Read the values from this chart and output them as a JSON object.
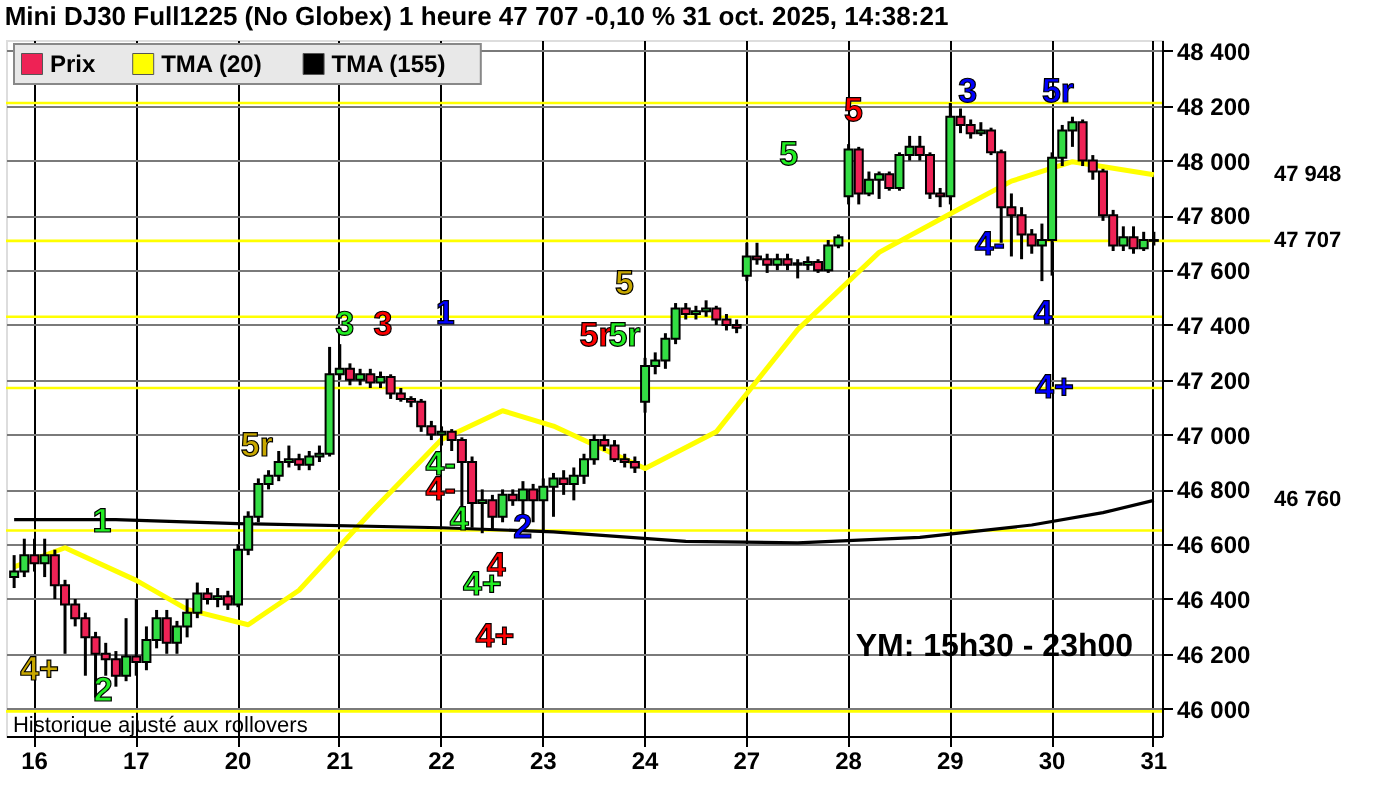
{
  "chart_data": {
    "type": "candlestick",
    "title": "Mini DJ30 Full1225 (No Globex) 1 heure 47 707 -0,10 % 31 oct. 2025, 14:38:21",
    "categories": [
      null,
      null,
      "16",
      null,
      null,
      null,
      null,
      null,
      null,
      null,
      null,
      null,
      "17",
      null,
      null,
      null,
      null,
      null,
      null,
      null,
      null,
      null,
      "20",
      null,
      null,
      null,
      null,
      null,
      null,
      null,
      null,
      null,
      "21",
      null,
      null,
      null,
      null,
      null,
      null,
      null,
      null,
      null,
      "22",
      null,
      null,
      null,
      null,
      null,
      null,
      null,
      null,
      null,
      "23",
      null,
      null,
      null,
      null,
      null,
      null,
      null,
      null,
      null,
      "24",
      null,
      null,
      null,
      null,
      null,
      null,
      null,
      null,
      null,
      "27",
      null,
      null,
      null,
      null,
      null,
      null,
      null,
      null,
      null,
      "28",
      null,
      null,
      null,
      null,
      null,
      null,
      null,
      null,
      null,
      "29",
      null,
      null,
      null,
      null,
      null,
      null,
      null,
      null,
      null,
      "30",
      null,
      null,
      null,
      null,
      null,
      null,
      null,
      null,
      null,
      "31"
    ],
    "ylim": [
      45900,
      48440
    ],
    "yticks": [
      {
        "value": 46000,
        "label": "46 000"
      },
      {
        "value": 46200,
        "label": "46 200"
      },
      {
        "value": 46400,
        "label": "46 400"
      },
      {
        "value": 46600,
        "label": "46 600"
      },
      {
        "value": 46800,
        "label": "46 800"
      },
      {
        "value": 47000,
        "label": "47 000"
      },
      {
        "value": 47200,
        "label": "47 200"
      },
      {
        "value": 47400,
        "label": "47 400"
      },
      {
        "value": 47600,
        "label": "47 600"
      },
      {
        "value": 47800,
        "label": "47 800"
      },
      {
        "value": 48000,
        "label": "48 000"
      },
      {
        "value": 48200,
        "label": "48 200"
      },
      {
        "value": 48400,
        "label": "48 400"
      }
    ],
    "grid": true,
    "legend": "top left",
    "series": [
      {
        "name": "Prix",
        "colors": [
          "#33dd44",
          "#33dd44",
          "#ee2255",
          "#33dd44",
          "#ee2255",
          "#ee2255",
          "#ee2255",
          "#ee2255",
          "#ee2255",
          "#ee2255",
          "#ee2255",
          "#33dd44",
          "#ee2255",
          "#33dd44",
          "#33dd44",
          "#ee2255",
          "#33dd44",
          "#33dd44",
          "#33dd44",
          "#ee2255",
          "#33dd44",
          "#ee2255",
          "#33dd44",
          "#33dd44",
          "#33dd44",
          "#33dd44",
          "#33dd44",
          "#33dd44",
          "#ee2255",
          "#33dd44",
          "#33dd44",
          "#33dd44",
          "#33dd44",
          "#ee2255",
          "#33dd44",
          "#ee2255",
          "#33dd44",
          "#ee2255",
          "#ee2255",
          "#ee2255",
          "#ee2255",
          "#ee2255",
          "#33dd44",
          "#ee2255",
          "#ee2255",
          "#ee2255",
          "#33dd44",
          "#ee2255",
          "#33dd44",
          "#ee2255",
          "#33dd44",
          "#ee2255",
          "#33dd44",
          "#33dd44",
          "#ee2255",
          "#33dd44",
          "#33dd44",
          "#33dd44",
          "#ee2255",
          "#ee2255",
          "#ee2255",
          "#ee2255",
          "#33dd44",
          "#33dd44",
          "#33dd44",
          "#33dd44",
          "#ee2255",
          "#33dd44",
          "#33dd44",
          "#ee2255",
          "#ee2255",
          "#ee2255",
          "#33dd44",
          "#ee2255",
          "#ee2255",
          "#33dd44",
          "#ee2255",
          "#33dd44",
          "#33dd44",
          "#ee2255",
          "#33dd44",
          "#33dd44",
          "#33dd44",
          "#ee2255",
          "#33dd44",
          "#33dd44",
          "#ee2255",
          "#33dd44",
          "#33dd44",
          "#ee2255",
          "#ee2255",
          "#ee2255",
          "#33dd44",
          "#ee2255",
          "#ee2255",
          "#33dd44",
          "#ee2255",
          "#ee2255",
          "#ee2255",
          "#ee2255",
          "#ee2255",
          "#33dd44",
          "#33dd44",
          "#33dd44",
          "#33dd44",
          "#ee2255",
          "#ee2255",
          "#ee2255",
          "#ee2255",
          "#33dd44",
          "#ee2255",
          "#33dd44",
          "#ee2255"
        ],
        "ohlc": [
          [
            46480,
            46560,
            46440,
            46500
          ],
          [
            46500,
            46620,
            46480,
            46560
          ],
          [
            46560,
            46620,
            46500,
            46530
          ],
          [
            46530,
            46620,
            46480,
            46560
          ],
          [
            46560,
            46580,
            46400,
            46450
          ],
          [
            46450,
            46470,
            46200,
            46380
          ],
          [
            46380,
            46400,
            46300,
            46330
          ],
          [
            46330,
            46350,
            46120,
            46260
          ],
          [
            46260,
            46280,
            46040,
            46200
          ],
          [
            46200,
            46240,
            46120,
            46180
          ],
          [
            46180,
            46210,
            46080,
            46120
          ],
          [
            46120,
            46330,
            46100,
            46190
          ],
          [
            46190,
            46400,
            46120,
            46170
          ],
          [
            46170,
            46300,
            46140,
            46250
          ],
          [
            46250,
            46360,
            46220,
            46330
          ],
          [
            46330,
            46360,
            46200,
            46240
          ],
          [
            46240,
            46320,
            46200,
            46300
          ],
          [
            46300,
            46400,
            46260,
            46350
          ],
          [
            46350,
            46460,
            46330,
            46420
          ],
          [
            46420,
            46440,
            46380,
            46400
          ],
          [
            46400,
            46440,
            46370,
            46410
          ],
          [
            46410,
            46430,
            46360,
            46380
          ],
          [
            46380,
            46600,
            46370,
            46580
          ],
          [
            46580,
            46720,
            46560,
            46700
          ],
          [
            46700,
            46840,
            46680,
            46820
          ],
          [
            46820,
            46870,
            46800,
            46850
          ],
          [
            46850,
            46940,
            46830,
            46900
          ],
          [
            46900,
            46960,
            46880,
            46910
          ],
          [
            46910,
            46930,
            46870,
            46890
          ],
          [
            46890,
            46940,
            46870,
            46920
          ],
          [
            46920,
            46960,
            46900,
            46930
          ],
          [
            46930,
            47320,
            46920,
            47220
          ],
          [
            47220,
            47330,
            47200,
            47240
          ],
          [
            47240,
            47260,
            47180,
            47200
          ],
          [
            47200,
            47240,
            47180,
            47220
          ],
          [
            47220,
            47240,
            47170,
            47190
          ],
          [
            47190,
            47230,
            47170,
            47210
          ],
          [
            47210,
            47220,
            47130,
            47150
          ],
          [
            47150,
            47170,
            47120,
            47130
          ],
          [
            47130,
            47140,
            47100,
            47120
          ],
          [
            47120,
            47130,
            47010,
            47030
          ],
          [
            47030,
            47050,
            46980,
            47000
          ],
          [
            47000,
            47030,
            46960,
            47010
          ],
          [
            47010,
            47020,
            46940,
            46980
          ],
          [
            46980,
            46990,
            46680,
            46900
          ],
          [
            46900,
            46920,
            46660,
            46750
          ],
          [
            46750,
            46800,
            46640,
            46760
          ],
          [
            46760,
            46780,
            46650,
            46700
          ],
          [
            46700,
            46800,
            46680,
            46780
          ],
          [
            46780,
            46800,
            46740,
            46760
          ],
          [
            46760,
            46830,
            46700,
            46800
          ],
          [
            46800,
            46820,
            46680,
            46760
          ],
          [
            46760,
            46840,
            46650,
            46810
          ],
          [
            46810,
            46860,
            46700,
            46840
          ],
          [
            46840,
            46870,
            46780,
            46820
          ],
          [
            46820,
            46880,
            46760,
            46850
          ],
          [
            46850,
            46930,
            46820,
            46910
          ],
          [
            46910,
            47000,
            46890,
            46980
          ],
          [
            46980,
            47000,
            46940,
            46960
          ],
          [
            46960,
            46980,
            46900,
            46910
          ],
          [
            46910,
            46930,
            46880,
            46900
          ],
          [
            46900,
            46920,
            46860,
            46880
          ],
          [
            47120,
            47280,
            47080,
            47250
          ],
          [
            47250,
            47300,
            47220,
            47270
          ],
          [
            47270,
            47370,
            47240,
            47350
          ],
          [
            47350,
            47480,
            47330,
            47460
          ],
          [
            47460,
            47480,
            47420,
            47440
          ],
          [
            47440,
            47470,
            47420,
            47450
          ],
          [
            47450,
            47490,
            47430,
            47460
          ],
          [
            47460,
            47470,
            47400,
            47420
          ],
          [
            47420,
            47440,
            47380,
            47400
          ],
          [
            47400,
            47420,
            47370,
            47390
          ],
          [
            47580,
            47700,
            47560,
            47650
          ],
          [
            47650,
            47700,
            47620,
            47640
          ],
          [
            47640,
            47660,
            47590,
            47620
          ],
          [
            47620,
            47660,
            47600,
            47640
          ],
          [
            47640,
            47660,
            47600,
            47620
          ],
          [
            47620,
            47640,
            47570,
            47625
          ],
          [
            47620,
            47650,
            47600,
            47630
          ],
          [
            47630,
            47640,
            47590,
            47600
          ],
          [
            47600,
            47710,
            47590,
            47690
          ],
          [
            47690,
            47730,
            47680,
            47720
          ],
          [
            47870,
            48060,
            47840,
            48040
          ],
          [
            48040,
            48050,
            47840,
            47880
          ],
          [
            47880,
            47960,
            47870,
            47930
          ],
          [
            47930,
            47960,
            47860,
            47950
          ],
          [
            47950,
            47960,
            47890,
            47900
          ],
          [
            47900,
            48030,
            47890,
            48020
          ],
          [
            48020,
            48090,
            48000,
            48050
          ],
          [
            48050,
            48090,
            48000,
            48020
          ],
          [
            48020,
            48030,
            47860,
            47880
          ],
          [
            47880,
            47900,
            47830,
            47870
          ],
          [
            47870,
            48210,
            47840,
            48160
          ],
          [
            48160,
            48190,
            48100,
            48130
          ],
          [
            48130,
            48150,
            48080,
            48100
          ],
          [
            48100,
            48140,
            48090,
            48110
          ],
          [
            48110,
            48120,
            48020,
            48030
          ],
          [
            48030,
            48040,
            47700,
            47830
          ],
          [
            47830,
            47880,
            47650,
            47800
          ],
          [
            47800,
            47830,
            47640,
            47730
          ],
          [
            47730,
            47750,
            47660,
            47690
          ],
          [
            47690,
            47770,
            47560,
            47710
          ],
          [
            47710,
            48030,
            47580,
            48010
          ],
          [
            48010,
            48130,
            47980,
            48110
          ],
          [
            48110,
            48160,
            48050,
            48140
          ],
          [
            48140,
            48150,
            47980,
            48000
          ],
          [
            48000,
            48020,
            47930,
            47960
          ],
          [
            47960,
            47970,
            47780,
            47800
          ],
          [
            47800,
            47820,
            47670,
            47690
          ],
          [
            47690,
            47760,
            47670,
            47720
          ],
          [
            47720,
            47760,
            47660,
            47680
          ],
          [
            47680,
            47740,
            47670,
            47710
          ],
          [
            47710,
            47740,
            47690,
            47707
          ]
        ]
      },
      {
        "name": "TMA (20)",
        "type": "line",
        "color": "#ffff00",
        "values": [
          46517,
          null,
          null,
          null,
          null,
          46587,
          null,
          null,
          null,
          null,
          null,
          null,
          46468,
          null,
          null,
          null,
          null,
          46362,
          null,
          null,
          null,
          null,
          null,
          46306,
          null,
          null,
          null,
          null,
          46432,
          null,
          null,
          null,
          null,
          null,
          null,
          46714,
          null,
          null,
          null,
          null,
          null,
          null,
          46982,
          null,
          null,
          null,
          null,
          null,
          47087,
          null,
          null,
          null,
          null,
          47031,
          null,
          null,
          null,
          null,
          null,
          null,
          null,
          null,
          46876,
          null,
          null,
          null,
          null,
          null,
          null,
          47010,
          null,
          null,
          null,
          null,
          null,
          null,
          null,
          47383,
          null,
          null,
          null,
          null,
          null,
          null,
          null,
          47665,
          null,
          null,
          null,
          null,
          null,
          null,
          47806,
          null,
          null,
          null,
          null,
          null,
          47925,
          null,
          null,
          null,
          null,
          null,
          47996,
          null,
          null,
          null,
          null,
          null,
          null,
          null,
          47948
        ]
      },
      {
        "name": "TMA (155)",
        "type": "line",
        "color": "#000000",
        "values": [
          46690,
          null,
          null,
          null,
          null,
          null,
          null,
          null,
          null,
          null,
          46690,
          null,
          null,
          null,
          null,
          null,
          null,
          null,
          null,
          null,
          null,
          null,
          46675,
          null,
          null,
          null,
          null,
          null,
          null,
          null,
          null,
          null,
          null,
          null,
          null,
          null,
          null,
          null,
          null,
          null,
          null,
          null,
          46660,
          null,
          null,
          null,
          null,
          null,
          null,
          null,
          null,
          null,
          null,
          46645,
          null,
          null,
          null,
          null,
          null,
          null,
          null,
          null,
          null,
          null,
          null,
          null,
          46610,
          null,
          null,
          null,
          null,
          null,
          null,
          null,
          null,
          null,
          null,
          46605,
          null,
          null,
          null,
          null,
          null,
          null,
          null,
          null,
          null,
          null,
          null,
          46625,
          null,
          null,
          null,
          null,
          null,
          null,
          null,
          null,
          null,
          null,
          46670,
          null,
          null,
          null,
          null,
          null,
          null,
          46715,
          null,
          null,
          null,
          null,
          46760
        ]
      }
    ],
    "ref_lines": [
      {
        "axis": "y",
        "value": 48210,
        "color": "#ffff00"
      },
      {
        "axis": "y",
        "value": 47707,
        "color": "#ffff00",
        "label": "47 707"
      },
      {
        "axis": "y",
        "value": 47430,
        "color": "#ffff00"
      },
      {
        "axis": "y",
        "value": 47170,
        "color": "#ffff00"
      },
      {
        "axis": "y",
        "value": 46650,
        "color": "#ffff00"
      },
      {
        "axis": "y",
        "value": 45990,
        "color": "#ffff00"
      }
    ],
    "annotations": [
      "Historique ajusté aux rollovers",
      "YM: 15h30 - 23h00",
      "47 948",
      "46 760",
      "4+",
      "2",
      "1",
      "5r",
      "3",
      "3",
      "1",
      "4-",
      "4-",
      "4",
      "4",
      "4+",
      "4+",
      "2",
      "5r",
      "5r",
      "5",
      "5",
      "5",
      "3",
      "5r",
      "4-",
      "4",
      "4+"
    ]
  }
}
